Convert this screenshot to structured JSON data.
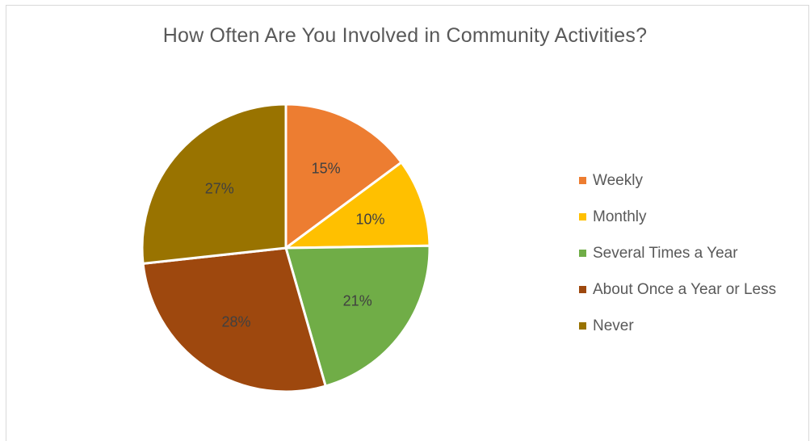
{
  "chart_data": {
    "type": "pie",
    "title": "How Often Are You Involved in Community Activities?",
    "categories": [
      "Weekly",
      "Monthly",
      "Several Times a Year",
      "About Once a Year or Less",
      "Never"
    ],
    "values": [
      15,
      10,
      21,
      28,
      27
    ],
    "data_labels": [
      "15%",
      "10%",
      "21%",
      "28%",
      "27%"
    ],
    "colors": [
      "#ed7d31",
      "#ffc000",
      "#70ad47",
      "#9e480e",
      "#997300"
    ],
    "legend_position": "right"
  }
}
